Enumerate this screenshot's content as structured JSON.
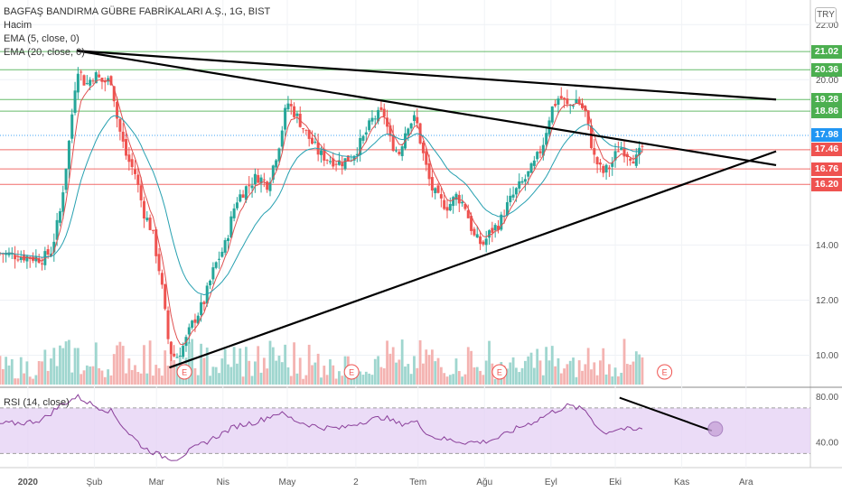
{
  "legend": {
    "title": "BAGFAŞ BANDIRMA GÜBRE FABRİKALARI A.Ş., 1G, BIST",
    "volume": "Hacim",
    "ema5": "EMA (5, close, 0)",
    "ema20": "EMA (20, close, 0)"
  },
  "rsi_legend": "RSI (14, close)",
  "currency": "TRY",
  "colors": {
    "up": "#26a69a",
    "down": "#ef5350",
    "ema5": "#e05050",
    "ema20": "#26a0b0",
    "rsi": "#8a3f9a",
    "rsi_band": "#e6d3f5",
    "trendline": "#000000",
    "hline_green": "#4caf50",
    "hline_red": "#ef5350",
    "current_price": "#2196f3"
  },
  "price_badges": [
    {
      "label": "21.02",
      "color": "#4caf50"
    },
    {
      "label": "20.36",
      "color": "#4caf50"
    },
    {
      "label": "19.28",
      "color": "#4caf50"
    },
    {
      "label": "18.86",
      "color": "#4caf50"
    },
    {
      "label": "17.98",
      "color": "#2196f3"
    },
    {
      "label": "17.46",
      "color": "#ef5350"
    },
    {
      "label": "16.76",
      "color": "#ef5350"
    },
    {
      "label": "16.20",
      "color": "#ef5350"
    }
  ],
  "chart_data": {
    "type": "candlestick",
    "price_axis": {
      "ticks": [
        "22.00",
        "20.00",
        "14.00",
        "12.00",
        "10.00"
      ],
      "range": [
        9.0,
        22.5
      ]
    },
    "rsi_axis": {
      "ticks": [
        "80.00",
        "40.00"
      ],
      "range": [
        20,
        85
      ],
      "band": [
        30,
        70
      ]
    },
    "x_ticks": [
      "2020",
      "Şub",
      "Mar",
      "Nis",
      "May",
      "2",
      "Tem",
      "Ağu",
      "Eyl",
      "Eki",
      "Kas",
      "Ara"
    ],
    "x_tick_days": [
      1,
      32,
      61,
      92,
      122,
      154,
      183,
      214,
      245,
      275,
      306,
      336
    ],
    "horizontal_levels": [
      {
        "value": 21.02,
        "color": "green"
      },
      {
        "value": 20.36,
        "color": "green"
      },
      {
        "value": 19.28,
        "color": "green"
      },
      {
        "value": 18.86,
        "color": "green"
      },
      {
        "value": 17.98,
        "color": "blue",
        "dotted": true
      },
      {
        "value": 17.46,
        "color": "red"
      },
      {
        "value": 16.76,
        "color": "red"
      },
      {
        "value": 16.2,
        "color": "red"
      }
    ],
    "trendlines": [
      {
        "from": [
          24,
          21.05
        ],
        "to": [
          350,
          19.28
        ]
      },
      {
        "from": [
          24,
          21.05
        ],
        "to": [
          350,
          16.9
        ]
      },
      {
        "from": [
          67,
          9.55
        ],
        "to": [
          350,
          17.4
        ]
      }
    ],
    "rsi_trendline": {
      "from": [
        277,
        79
      ],
      "to": [
        320,
        50
      ]
    },
    "earnings_markers": [
      {
        "day": 74,
        "label": "E"
      },
      {
        "day": 152,
        "label": "E"
      },
      {
        "day": 221,
        "label": "E"
      },
      {
        "day": 298,
        "label": "E"
      }
    ],
    "close_path": [
      [
        -12,
        13.7
      ],
      [
        8,
        13.5
      ],
      [
        12,
        13.8
      ],
      [
        16,
        15.2
      ],
      [
        20,
        17.6
      ],
      [
        24,
        20.5
      ],
      [
        28,
        19.8
      ],
      [
        32,
        20.2
      ],
      [
        36,
        19.9
      ],
      [
        40,
        20.0
      ],
      [
        43,
        18.4
      ],
      [
        47,
        17.2
      ],
      [
        51,
        16.6
      ],
      [
        55,
        15.2
      ],
      [
        59,
        14.5
      ],
      [
        63,
        12.8
      ],
      [
        67,
        10.2
      ],
      [
        70,
        9.9
      ],
      [
        74,
        10.4
      ],
      [
        78,
        11.2
      ],
      [
        83,
        11.9
      ],
      [
        88,
        13.2
      ],
      [
        93,
        14.0
      ],
      [
        98,
        15.6
      ],
      [
        103,
        16.1
      ],
      [
        108,
        16.5
      ],
      [
        113,
        16.2
      ],
      [
        118,
        17.6
      ],
      [
        122,
        19.2
      ],
      [
        127,
        18.6
      ],
      [
        132,
        17.9
      ],
      [
        137,
        17.3
      ],
      [
        142,
        17.1
      ],
      [
        147,
        17.0
      ],
      [
        152,
        17.2
      ],
      [
        157,
        17.8
      ],
      [
        162,
        18.6
      ],
      [
        167,
        18.8
      ],
      [
        170,
        17.8
      ],
      [
        174,
        17.3
      ],
      [
        178,
        18.4
      ],
      [
        182,
        18.6
      ],
      [
        185,
        17.4
      ],
      [
        189,
        16.1
      ],
      [
        193,
        15.6
      ],
      [
        197,
        15.4
      ],
      [
        201,
        15.8
      ],
      [
        205,
        15.4
      ],
      [
        209,
        14.3
      ],
      [
        213,
        14.0
      ],
      [
        217,
        14.5
      ],
      [
        221,
        14.8
      ],
      [
        225,
        15.5
      ],
      [
        229,
        16.0
      ],
      [
        233,
        16.4
      ],
      [
        237,
        16.9
      ],
      [
        241,
        17.6
      ],
      [
        245,
        18.9
      ],
      [
        249,
        19.4
      ],
      [
        253,
        19.0
      ],
      [
        257,
        19.3
      ],
      [
        261,
        18.8
      ],
      [
        265,
        17.2
      ],
      [
        269,
        16.6
      ],
      [
        273,
        16.9
      ],
      [
        277,
        17.6
      ],
      [
        281,
        17.3
      ],
      [
        285,
        17.1
      ],
      [
        289,
        17.8
      ]
    ],
    "rsi_path": [
      [
        -12,
        56
      ],
      [
        0,
        57
      ],
      [
        8,
        60
      ],
      [
        16,
        72
      ],
      [
        24,
        80
      ],
      [
        32,
        72
      ],
      [
        40,
        67
      ],
      [
        47,
        50
      ],
      [
        55,
        35
      ],
      [
        63,
        28
      ],
      [
        70,
        25
      ],
      [
        78,
        34
      ],
      [
        88,
        44
      ],
      [
        98,
        54
      ],
      [
        108,
        58
      ],
      [
        118,
        66
      ],
      [
        127,
        58
      ],
      [
        137,
        53
      ],
      [
        147,
        52
      ],
      [
        157,
        58
      ],
      [
        167,
        62
      ],
      [
        174,
        56
      ],
      [
        182,
        58
      ],
      [
        189,
        45
      ],
      [
        197,
        42
      ],
      [
        205,
        40
      ],
      [
        213,
        40
      ],
      [
        221,
        44
      ],
      [
        229,
        52
      ],
      [
        237,
        58
      ],
      [
        245,
        66
      ],
      [
        253,
        72
      ],
      [
        261,
        68
      ],
      [
        269,
        48
      ],
      [
        277,
        52
      ],
      [
        285,
        50
      ],
      [
        289,
        54
      ]
    ]
  }
}
